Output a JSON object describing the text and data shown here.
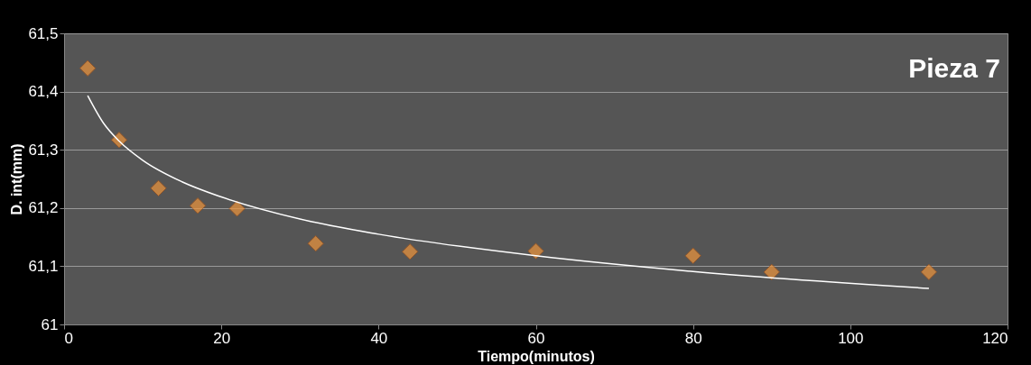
{
  "chart_data": {
    "type": "scatter",
    "xlabel": "Tiempo(minutos)",
    "ylabel": "D. int(mm)",
    "annotations": [
      "Pieza 7"
    ],
    "xlim": [
      0,
      120
    ],
    "xticks": [
      0,
      20,
      40,
      60,
      80,
      100,
      120
    ],
    "ylim": [
      61,
      61.5
    ],
    "yticks": [
      61,
      {
        "value": 61.1,
        "label": "61,1"
      },
      {
        "value": 61.2,
        "label": "61,2"
      },
      {
        "value": 61.3,
        "label": "61,3"
      },
      {
        "value": 61.4,
        "label": "61,4"
      },
      {
        "value": 61.5,
        "label": "61,5"
      }
    ],
    "grid": "y",
    "marker": "diamond",
    "series": [
      {
        "type": "scatter",
        "color": "#f0963c",
        "x": [
          3,
          7,
          12,
          17,
          22,
          32,
          44,
          60,
          80,
          90,
          110
        ],
        "values": [
          61.44,
          61.317,
          61.234,
          61.204,
          61.199,
          61.139,
          61.125,
          61.126,
          61.118,
          61.09,
          61.09
        ]
      },
      {
        "type": "line",
        "color": "#ffffff",
        "marker": "none",
        "x": [
          3,
          5,
          7,
          10,
          15,
          20,
          30,
          40,
          60,
          80,
          110
        ],
        "values": [
          61.393,
          61.346,
          61.315,
          61.282,
          61.245,
          61.219,
          61.181,
          61.155,
          61.118,
          61.091,
          61.062
        ]
      }
    ]
  }
}
